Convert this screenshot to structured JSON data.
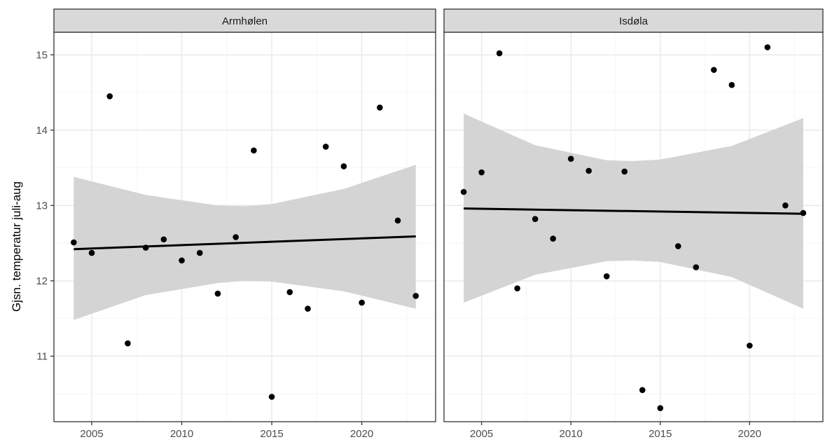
{
  "chart_data": {
    "type": "scatter",
    "facets": [
      {
        "strip_label": "Armhølen",
        "points": [
          {
            "x": 2004,
            "y": 12.51
          },
          {
            "x": 2005,
            "y": 12.37
          },
          {
            "x": 2006,
            "y": 14.45
          },
          {
            "x": 2007,
            "y": 11.17
          },
          {
            "x": 2008,
            "y": 12.44
          },
          {
            "x": 2009,
            "y": 12.55
          },
          {
            "x": 2010,
            "y": 12.27
          },
          {
            "x": 2011,
            "y": 12.37
          },
          {
            "x": 2012,
            "y": 11.83
          },
          {
            "x": 2013,
            "y": 12.58
          },
          {
            "x": 2014,
            "y": 13.73
          },
          {
            "x": 2015,
            "y": 10.46
          },
          {
            "x": 2016,
            "y": 11.85
          },
          {
            "x": 2017,
            "y": 11.63
          },
          {
            "x": 2018,
            "y": 13.78
          },
          {
            "x": 2019,
            "y": 13.52
          },
          {
            "x": 2020,
            "y": 11.71
          },
          {
            "x": 2021,
            "y": 14.3
          },
          {
            "x": 2022,
            "y": 12.8
          },
          {
            "x": 2023,
            "y": 11.8
          }
        ],
        "trend": {
          "x": [
            2004,
            2023
          ],
          "y": [
            12.42,
            12.59
          ]
        },
        "ci_band": {
          "x": [
            2004,
            2008,
            2012,
            2013.5,
            2015,
            2019,
            2023
          ],
          "lower": [
            11.48,
            11.81,
            11.97,
            12.0,
            11.99,
            11.86,
            11.63
          ],
          "upper": [
            13.38,
            13.14,
            13.0,
            12.99,
            13.02,
            13.22,
            13.54
          ]
        }
      },
      {
        "strip_label": "Isdøla",
        "points": [
          {
            "x": 2004,
            "y": 13.18
          },
          {
            "x": 2005,
            "y": 13.44
          },
          {
            "x": 2006,
            "y": 15.02
          },
          {
            "x": 2007,
            "y": 11.9
          },
          {
            "x": 2008,
            "y": 12.82
          },
          {
            "x": 2009,
            "y": 12.56
          },
          {
            "x": 2010,
            "y": 13.62
          },
          {
            "x": 2011,
            "y": 13.46
          },
          {
            "x": 2012,
            "y": 12.06
          },
          {
            "x": 2013,
            "y": 13.45
          },
          {
            "x": 2014,
            "y": 10.55
          },
          {
            "x": 2015,
            "y": 10.31
          },
          {
            "x": 2016,
            "y": 12.46
          },
          {
            "x": 2017,
            "y": 12.18
          },
          {
            "x": 2018,
            "y": 14.8
          },
          {
            "x": 2019,
            "y": 14.6
          },
          {
            "x": 2020,
            "y": 11.14
          },
          {
            "x": 2021,
            "y": 15.1
          },
          {
            "x": 2022,
            "y": 13.0
          },
          {
            "x": 2023,
            "y": 12.9
          }
        ],
        "trend": {
          "x": [
            2004,
            2023
          ],
          "y": [
            12.96,
            12.89
          ]
        },
        "ci_band": {
          "x": [
            2004,
            2008,
            2012,
            2013.5,
            2015,
            2019,
            2023
          ],
          "lower": [
            11.71,
            12.08,
            12.26,
            12.27,
            12.25,
            12.05,
            11.63
          ],
          "upper": [
            14.22,
            13.8,
            13.6,
            13.59,
            13.61,
            13.79,
            14.16
          ]
        }
      }
    ],
    "xlabel": "",
    "ylabel": "Gjsn. temperatur juli-aug",
    "x_ticks": [
      2005,
      2010,
      2015,
      2020
    ],
    "x_tick_labels": [
      "2005",
      "2010",
      "2015",
      "2020"
    ],
    "y_ticks": [
      11,
      12,
      13,
      14,
      15
    ],
    "y_tick_labels": [
      "11",
      "12",
      "13",
      "14",
      "15"
    ],
    "xlim": [
      2002.9,
      2024.1
    ],
    "ylim": [
      10.13,
      15.3
    ],
    "grid": true,
    "legend": "none",
    "colors": {
      "points": "#000000",
      "trend_line": "#000000",
      "ci_band": "#d4d4d4",
      "strip_background": "#d9d9d9",
      "panel_border": "#333333",
      "grid_major": "#ebebeb",
      "grid_minor": "#f5f5f5"
    }
  }
}
